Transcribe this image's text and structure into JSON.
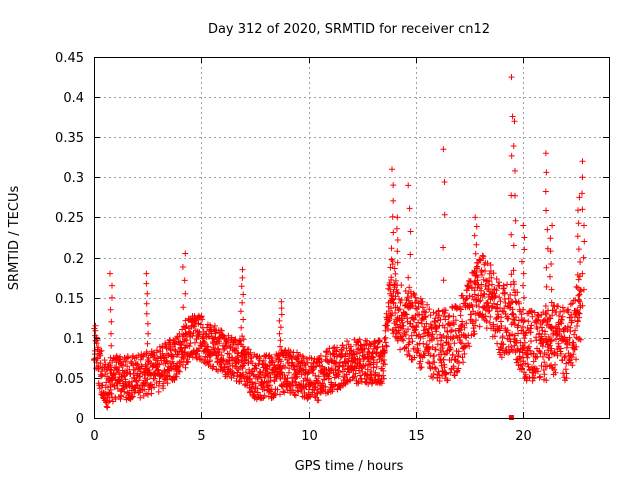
{
  "chart_data": {
    "type": "scatter",
    "title": "Day 312 of 2020, SRMTID for receiver cn12",
    "xlabel": "GPS time / hours",
    "ylabel": "SRMTID / TECUs",
    "xlim": [
      0,
      24
    ],
    "ylim": [
      0,
      0.45
    ],
    "x_ticks": [
      0,
      5,
      10,
      15,
      20
    ],
    "x_tick_labels": [
      "0",
      "5",
      "10",
      "15",
      "20"
    ],
    "y_ticks": [
      0,
      0.05,
      0.1,
      0.15,
      0.2,
      0.25,
      0.3,
      0.35,
      0.4,
      0.45
    ],
    "y_tick_labels": [
      "0",
      "0.05",
      "0.1",
      "0.15",
      "0.2",
      "0.25",
      "0.3",
      "0.35",
      "0.4",
      "0.45"
    ],
    "grid": true,
    "legend": "none",
    "marker": "+",
    "series": [
      {
        "name": "SRMTID",
        "color": "#ff0000",
        "baseline": {
          "x": [
            0.0,
            0.3,
            0.6,
            1.0,
            2.0,
            3.0,
            4.0,
            4.5,
            5.0,
            6.0,
            7.0,
            7.5,
            8.0,
            9.0,
            10.0,
            10.5,
            11.0,
            12.0,
            13.0,
            13.5,
            13.8,
            14.2,
            15.0,
            16.0,
            16.5,
            17.0,
            17.5,
            18.0,
            18.5,
            19.0,
            19.5,
            20.0,
            21.0,
            21.5,
            22.0,
            22.5,
            22.7
          ],
          "y": [
            0.1,
            0.06,
            0.04,
            0.05,
            0.05,
            0.06,
            0.08,
            0.1,
            0.1,
            0.08,
            0.07,
            0.05,
            0.05,
            0.06,
            0.05,
            0.05,
            0.06,
            0.07,
            0.07,
            0.07,
            0.16,
            0.13,
            0.11,
            0.09,
            0.09,
            0.1,
            0.13,
            0.16,
            0.15,
            0.12,
            0.13,
            0.09,
            0.09,
            0.1,
            0.09,
            0.12,
            0.14
          ]
        },
        "spikes": {
          "x": [
            0.8,
            2.5,
            4.2,
            6.9,
            8.7,
            13.9,
            14.1,
            14.7,
            16.3,
            17.8,
            19.5,
            19.6,
            20.0,
            21.1,
            21.3,
            22.6,
            22.8
          ],
          "y": [
            0.18,
            0.18,
            0.205,
            0.185,
            0.145,
            0.31,
            0.25,
            0.29,
            0.335,
            0.25,
            0.425,
            0.37,
            0.24,
            0.33,
            0.24,
            0.275,
            0.32
          ]
        },
        "outliers": {
          "x": [
            19.45
          ],
          "y": [
            0.0
          ]
        }
      }
    ]
  }
}
